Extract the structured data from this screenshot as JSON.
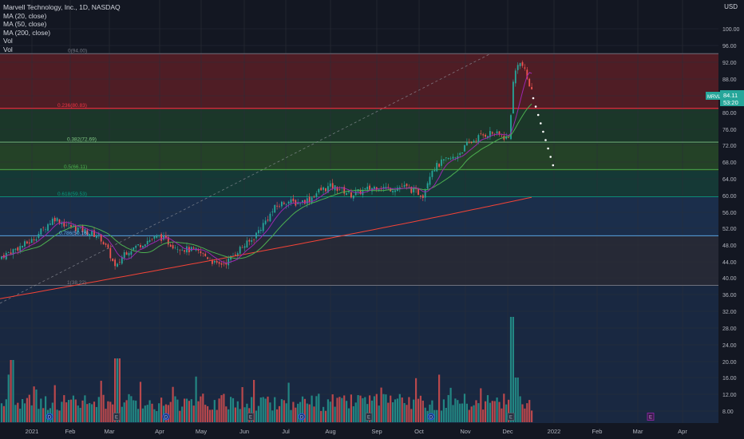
{
  "header": {
    "title": "Marvell Technology, Inc., 1D, NASDAQ",
    "indicators": [
      "MA (20, close)",
      "MA (50, close)",
      "MA (200, close)",
      "Vol",
      "Vol"
    ],
    "currency": "USD"
  },
  "chart_data": {
    "type": "candlestick",
    "symbol": "MRVL",
    "last_price_label": "84.11",
    "countdown_label": "53:20",
    "y_ticks": [
      "100.00",
      "96.00",
      "92.00",
      "88.00",
      "84.00",
      "80.00",
      "76.00",
      "72.00",
      "68.00",
      "64.00",
      "60.00",
      "56.00",
      "52.00",
      "48.00",
      "44.00",
      "40.00",
      "36.00",
      "32.00",
      "28.00",
      "24.00",
      "20.00",
      "16.00",
      "12.00",
      "8.00"
    ],
    "x_ticks": [
      "2021",
      "Feb",
      "Mar",
      "Apr",
      "May",
      "Jun",
      "Jul",
      "Aug",
      "Sep",
      "Oct",
      "Nov",
      "Dec",
      "2022",
      "Feb",
      "Mar",
      "Apr"
    ],
    "fib_levels": [
      {
        "label": "0(94.00)",
        "price": 94.0,
        "color": "#787b86"
      },
      {
        "label": "0.236(80.83)",
        "price": 80.83,
        "color": "#f23645"
      },
      {
        "label": "0.382(72.69)",
        "price": 72.69,
        "color": "#81c784"
      },
      {
        "label": "0.5(66.11)",
        "price": 66.11,
        "color": "#4caf50"
      },
      {
        "label": "0.618(59.53)",
        "price": 59.53,
        "color": "#089981"
      },
      {
        "label": "0.786(50.16)",
        "price": 50.16,
        "color": "#64b5f6"
      },
      {
        "label": "1(38.22)",
        "price": 38.22,
        "color": "#787b86"
      }
    ],
    "earnings_markers": [
      "E",
      "E",
      "E",
      "E",
      "E"
    ],
    "dividend_markers": [
      "D",
      "D",
      "D",
      "D",
      "D",
      "D"
    ],
    "colors": {
      "up": "#26a69a",
      "down": "#ef5350",
      "ma20": "#9c27b0",
      "ma50": "#4caf50",
      "ma200": "#f44336"
    }
  }
}
